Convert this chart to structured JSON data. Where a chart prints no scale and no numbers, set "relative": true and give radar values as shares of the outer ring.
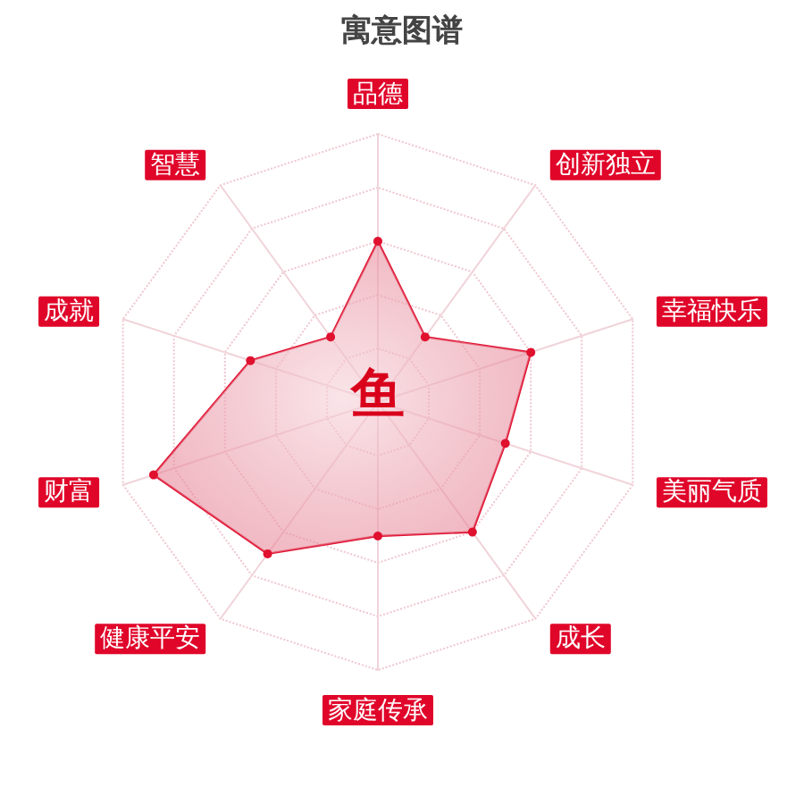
{
  "chart_data": {
    "type": "radar",
    "title": "寓意图谱",
    "categories": [
      "品德",
      "创新独立",
      "幸福快乐",
      "美丽气质",
      "成长",
      "家庭传承",
      "健康平安",
      "财富",
      "成就",
      "智慧"
    ],
    "relative": true,
    "series": [
      {
        "color": "#e0102f",
        "values": [
          0.6,
          0.3,
          0.6,
          0.5,
          0.6,
          0.5,
          0.7,
          0.88,
          0.5,
          0.3
        ]
      }
    ],
    "marker": "circle",
    "grid": true,
    "annotations": [
      "鱼"
    ]
  }
}
